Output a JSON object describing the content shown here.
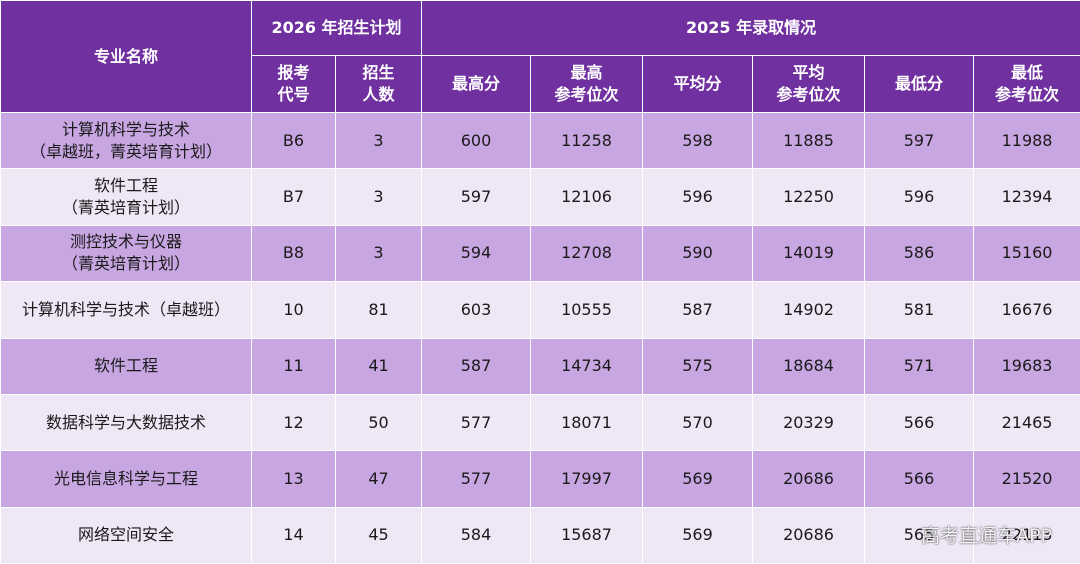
{
  "header": {
    "major_name": "专业名称",
    "plan_2026": "2026 年招生计划",
    "admission_2025": "2025 年录取情况",
    "code": "报考\n代号",
    "enroll_count": "招生\n人数",
    "max_score": "最高分",
    "max_rank": "最高\n参考位次",
    "avg_score": "平均分",
    "avg_rank": "平均\n参考位次",
    "min_score": "最低分",
    "min_rank": "最低\n参考位次"
  },
  "rows": [
    {
      "name": "计算机科学与技术\n（卓越班，菁英培育计划）",
      "code": "B6",
      "count": "3",
      "max": "600",
      "max_rank": "11258",
      "avg": "598",
      "avg_rank": "11885",
      "min": "597",
      "min_rank": "11988"
    },
    {
      "name": "软件工程\n（菁英培育计划）",
      "code": "B7",
      "count": "3",
      "max": "597",
      "max_rank": "12106",
      "avg": "596",
      "avg_rank": "12250",
      "min": "596",
      "min_rank": "12394"
    },
    {
      "name": "测控技术与仪器\n（菁英培育计划）",
      "code": "B8",
      "count": "3",
      "max": "594",
      "max_rank": "12708",
      "avg": "590",
      "avg_rank": "14019",
      "min": "586",
      "min_rank": "15160"
    },
    {
      "name": "计算机科学与技术（卓越班）",
      "code": "10",
      "count": "81",
      "max": "603",
      "max_rank": "10555",
      "avg": "587",
      "avg_rank": "14902",
      "min": "581",
      "min_rank": "16676"
    },
    {
      "name": "软件工程",
      "code": "11",
      "count": "41",
      "max": "587",
      "max_rank": "14734",
      "avg": "575",
      "avg_rank": "18684",
      "min": "571",
      "min_rank": "19683"
    },
    {
      "name": "数据科学与大数据技术",
      "code": "12",
      "count": "50",
      "max": "577",
      "max_rank": "18071",
      "avg": "570",
      "avg_rank": "20329",
      "min": "566",
      "min_rank": "21465"
    },
    {
      "name": "光电信息科学与工程",
      "code": "13",
      "count": "47",
      "max": "577",
      "max_rank": "17997",
      "avg": "569",
      "avg_rank": "20686",
      "min": "566",
      "min_rank": "21520"
    },
    {
      "name": "网络空间安全",
      "code": "14",
      "count": "45",
      "max": "584",
      "max_rank": "15687",
      "avg": "569",
      "avg_rank": "20686",
      "min": "565",
      "min_rank": "22113"
    }
  ],
  "watermark": "高考直通车APP"
}
